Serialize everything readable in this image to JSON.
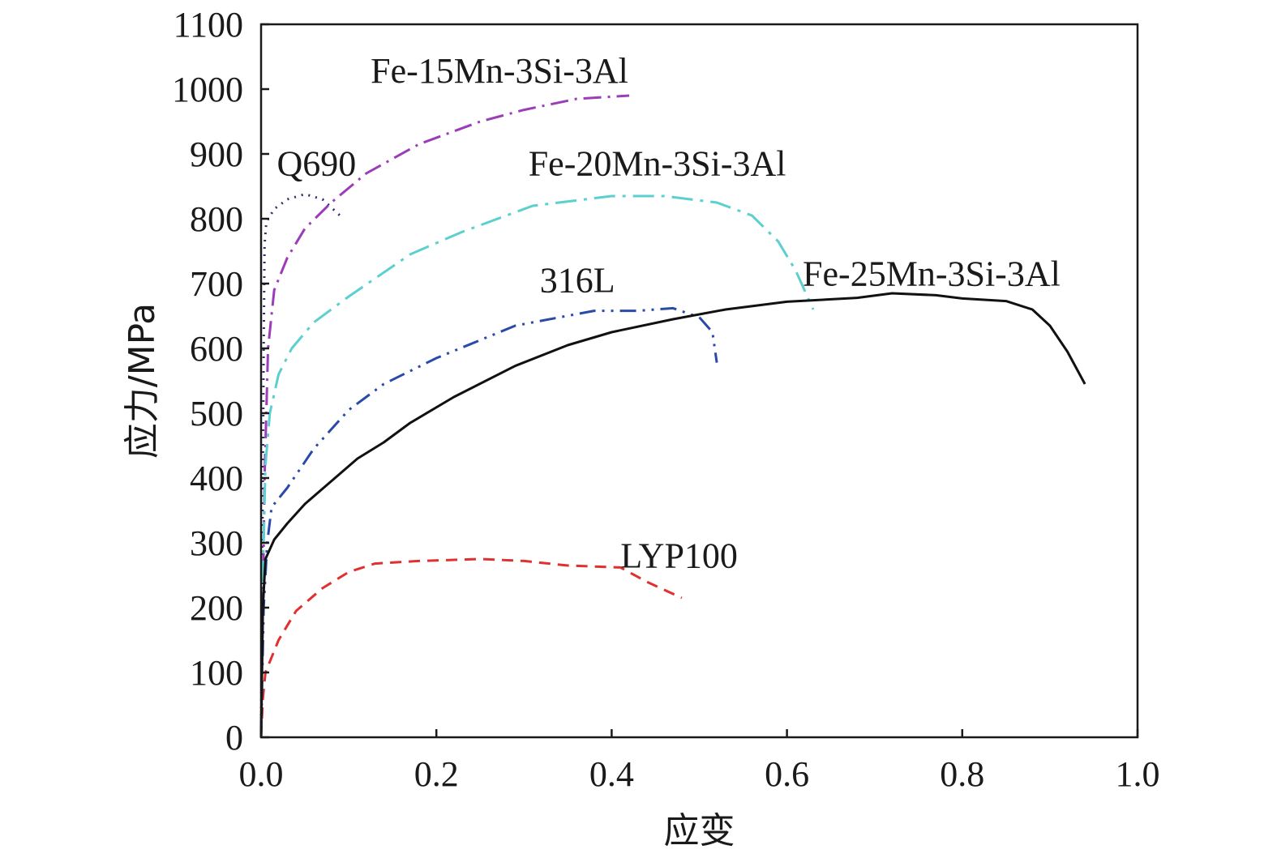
{
  "chart_data": {
    "type": "line",
    "title": "",
    "xlabel": "应变",
    "ylabel": "应力/MPa",
    "xlim": [
      0.0,
      1.0
    ],
    "ylim": [
      0,
      1100
    ],
    "xticks": [
      "0.0",
      "0.2",
      "0.4",
      "0.6",
      "0.8",
      "1.0"
    ],
    "yticks": [
      "0",
      "100",
      "200",
      "300",
      "400",
      "500",
      "600",
      "700",
      "800",
      "900",
      "1000",
      "1100"
    ],
    "grid": false,
    "legend": "none",
    "series": [
      {
        "name": "LYP100",
        "color": "#e03030",
        "dash": "14 9",
        "points": [
          [
            0.0,
            0
          ],
          [
            0.002,
            60
          ],
          [
            0.005,
            100
          ],
          [
            0.02,
            150
          ],
          [
            0.04,
            195
          ],
          [
            0.07,
            230
          ],
          [
            0.1,
            255
          ],
          [
            0.13,
            268
          ],
          [
            0.18,
            272
          ],
          [
            0.25,
            275
          ],
          [
            0.3,
            272
          ],
          [
            0.35,
            265
          ],
          [
            0.41,
            262
          ],
          [
            0.44,
            240
          ],
          [
            0.48,
            215
          ]
        ]
      },
      {
        "name": "Q690",
        "color": "#2b2f6e",
        "dash": "2 7",
        "points": [
          [
            0.0,
            0
          ],
          [
            0.001,
            200
          ],
          [
            0.002,
            400
          ],
          [
            0.003,
            600
          ],
          [
            0.004,
            760
          ],
          [
            0.006,
            795
          ],
          [
            0.015,
            815
          ],
          [
            0.03,
            830
          ],
          [
            0.05,
            838
          ],
          [
            0.07,
            830
          ],
          [
            0.09,
            805
          ]
        ]
      },
      {
        "name": "Fe-15Mn-3Si-3Al",
        "color": "#9b3db8",
        "dash": "22 8 3 8",
        "points": [
          [
            0.0,
            0
          ],
          [
            0.002,
            200
          ],
          [
            0.004,
            400
          ],
          [
            0.008,
            600
          ],
          [
            0.015,
            690
          ],
          [
            0.03,
            740
          ],
          [
            0.05,
            785
          ],
          [
            0.08,
            825
          ],
          [
            0.12,
            870
          ],
          [
            0.18,
            915
          ],
          [
            0.25,
            950
          ],
          [
            0.3,
            968
          ],
          [
            0.36,
            985
          ],
          [
            0.42,
            990
          ]
        ]
      },
      {
        "name": "Fe-20Mn-3Si-3Al",
        "color": "#5ccfcf",
        "dash": "26 9 4 9",
        "points": [
          [
            0.0,
            0
          ],
          [
            0.002,
            250
          ],
          [
            0.005,
            420
          ],
          [
            0.01,
            500
          ],
          [
            0.02,
            560
          ],
          [
            0.035,
            600
          ],
          [
            0.06,
            640
          ],
          [
            0.1,
            680
          ],
          [
            0.17,
            745
          ],
          [
            0.23,
            780
          ],
          [
            0.31,
            820
          ],
          [
            0.4,
            835
          ],
          [
            0.46,
            835
          ],
          [
            0.52,
            825
          ],
          [
            0.56,
            805
          ],
          [
            0.59,
            765
          ],
          [
            0.61,
            720
          ],
          [
            0.63,
            660
          ]
        ]
      },
      {
        "name": "316L",
        "color": "#2a4aa8",
        "dash": "20 8 3 8 3 8",
        "points": [
          [
            0.0,
            0
          ],
          [
            0.003,
            200
          ],
          [
            0.007,
            300
          ],
          [
            0.012,
            355
          ],
          [
            0.03,
            385
          ],
          [
            0.06,
            445
          ],
          [
            0.1,
            505
          ],
          [
            0.14,
            545
          ],
          [
            0.2,
            585
          ],
          [
            0.29,
            635
          ],
          [
            0.38,
            658
          ],
          [
            0.43,
            658
          ],
          [
            0.47,
            662
          ],
          [
            0.5,
            648
          ],
          [
            0.515,
            625
          ],
          [
            0.52,
            578
          ]
        ]
      },
      {
        "name": "Fe-25Mn-3Si-3Al",
        "color": "#111111",
        "dash": "",
        "points": [
          [
            0.0,
            0
          ],
          [
            0.002,
            200
          ],
          [
            0.005,
            275
          ],
          [
            0.015,
            305
          ],
          [
            0.03,
            330
          ],
          [
            0.05,
            360
          ],
          [
            0.08,
            395
          ],
          [
            0.11,
            430
          ],
          [
            0.14,
            455
          ],
          [
            0.17,
            485
          ],
          [
            0.22,
            525
          ],
          [
            0.29,
            573
          ],
          [
            0.35,
            605
          ],
          [
            0.4,
            625
          ],
          [
            0.47,
            645
          ],
          [
            0.53,
            660
          ],
          [
            0.6,
            672
          ],
          [
            0.68,
            678
          ],
          [
            0.72,
            685
          ],
          [
            0.77,
            682
          ],
          [
            0.8,
            677
          ],
          [
            0.85,
            673
          ],
          [
            0.88,
            660
          ],
          [
            0.9,
            635
          ],
          [
            0.92,
            595
          ],
          [
            0.94,
            545
          ]
        ]
      }
    ],
    "annotations": [
      {
        "text": "Fe-15Mn-3Si-3Al",
        "x": 0.125,
        "y": 1010
      },
      {
        "text": "Q690",
        "x": 0.018,
        "y": 867
      },
      {
        "text": "Fe-20Mn-3Si-3Al",
        "x": 0.305,
        "y": 867
      },
      {
        "text": "Fe-25Mn-3Si-3Al",
        "x": 0.618,
        "y": 697
      },
      {
        "text": "316L",
        "x": 0.318,
        "y": 687
      },
      {
        "text": "LYP100",
        "x": 0.41,
        "y": 262
      }
    ]
  }
}
